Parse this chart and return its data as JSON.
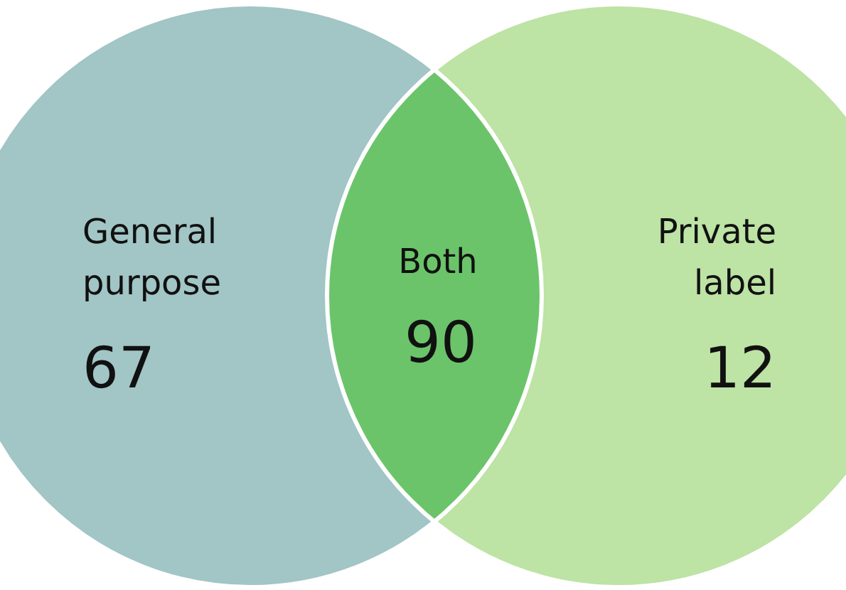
{
  "chart_data": {
    "type": "other",
    "categories": [
      "General purpose",
      "Both",
      "Private label"
    ],
    "values": [
      67,
      90,
      12
    ],
    "data_labels": true,
    "colors": [
      "#a2c5c5",
      "#6bc46a",
      "#bde3a5"
    ]
  }
}
